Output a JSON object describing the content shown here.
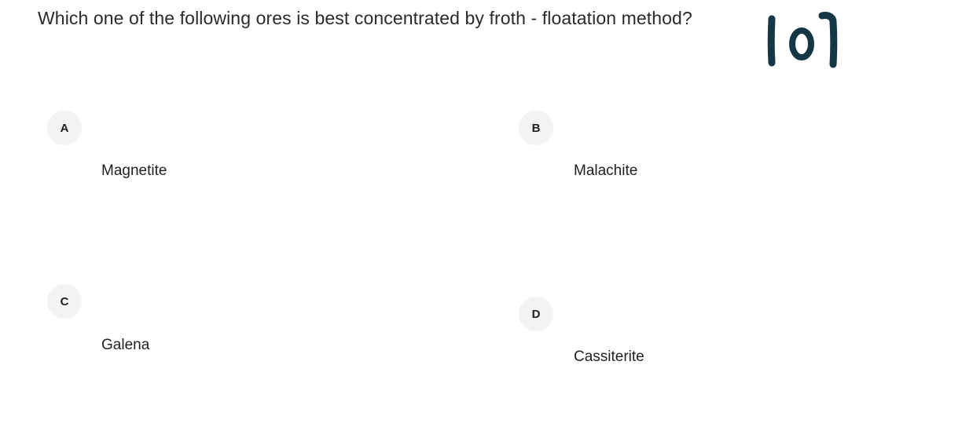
{
  "question": {
    "text": "Which one of the following ores is best concentrated by froth - floatation method?",
    "number": "101"
  },
  "options": [
    {
      "letter": "A",
      "text": "Magnetite"
    },
    {
      "letter": "B",
      "text": "Malachite"
    },
    {
      "letter": "C",
      "text": "Galena"
    },
    {
      "letter": "D",
      "text": "Cassiterite"
    }
  ],
  "colors": {
    "handwriting": "#163845",
    "badge_bg": "#f3f3f3",
    "text": "#1f1f1f"
  }
}
